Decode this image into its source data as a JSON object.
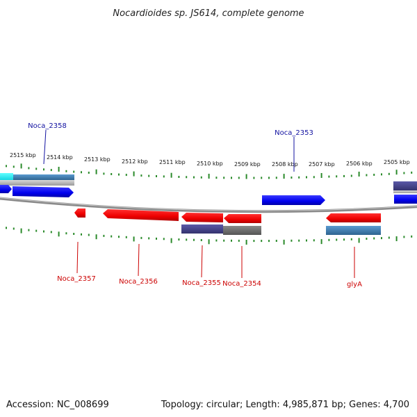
{
  "title": "Nocardioides sp. JS614, complete genome",
  "footer": {
    "accession": "Accession: NC_008699",
    "summary": "Topology: circular; Length: 4,985,871 bp; Genes: 4,700"
  },
  "colors": {
    "forward_cds": "#0000ff",
    "reverse_cds": "#ff0000",
    "forward_label": "#1010a0",
    "reverse_label": "#cc0000",
    "tick": "#2a8a2a",
    "backbone": "#888888",
    "annot_purple": "#4a4890",
    "annot_steel": "#3f7fae",
    "annot_gray": "#6b6b6b",
    "annot_cyan": "#00e0f0"
  },
  "ticks": [
    {
      "label": "2515 kbp"
    },
    {
      "label": "2514 kbp"
    },
    {
      "label": "2513 kbp"
    },
    {
      "label": "2512 kbp"
    },
    {
      "label": "2511 kbp"
    },
    {
      "label": "2510 kbp"
    },
    {
      "label": "2509 kbp"
    },
    {
      "label": "2508 kbp"
    },
    {
      "label": "2507 kbp"
    },
    {
      "label": "2506 kbp"
    },
    {
      "label": "2505 kbp"
    }
  ],
  "genes": {
    "noca_2358": "Noca_2358",
    "noca_2353": "Noca_2353",
    "noca_2357": "Noca_2357",
    "noca_2356": "Noca_2356",
    "noca_2355": "Noca_2355",
    "noca_2354": "Noca_2354",
    "glya": "glyA"
  }
}
